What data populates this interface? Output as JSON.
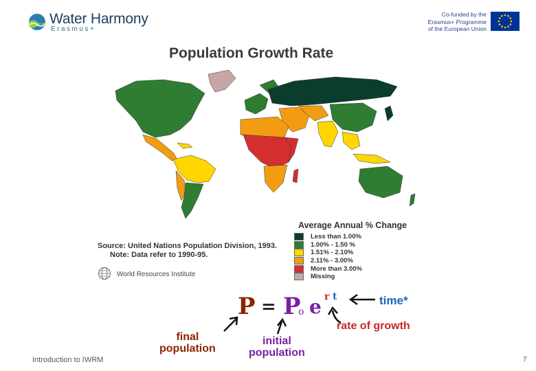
{
  "header": {
    "logo_name": "Water Harmony",
    "logo_sub": "Erasmus+",
    "eu_lines": [
      "Co-funded by the",
      "Erasmus+ Programme",
      "of the European Union"
    ],
    "colors": {
      "brand_blue": "#1b3f5c",
      "eu_blue": "#2a3f8f",
      "eu_flag": "#003399",
      "eu_star": "#ffcc00"
    }
  },
  "map": {
    "title": "Population Growth Rate",
    "source": "Source: United Nations Population Division, 1993.",
    "note": "Note: Data refer to 1990-95.",
    "publisher": "World Resources Institute",
    "legend": {
      "title": "Average Annual % Change",
      "items": [
        {
          "label": "Less than 1.00%",
          "color": "#0b3d2e"
        },
        {
          "label": "1.00% - 1.50 %",
          "color": "#2e7d32"
        },
        {
          "label": "1.51% - 2.10%",
          "color": "#ffd600"
        },
        {
          "label": "2.11% - 3.00%",
          "color": "#f39c12"
        },
        {
          "label": "More than 3.00%",
          "color": "#d32f2f"
        },
        {
          "label": "Missing",
          "color": "#c8a6a6"
        }
      ]
    }
  },
  "formula": {
    "P": "P",
    "eq": "=",
    "P0": "P",
    "sub": "o",
    "e": "e",
    "r": "r",
    "t": "t",
    "labels": {
      "time": "time*",
      "rate": "rate of growth",
      "final": [
        "final",
        "population"
      ],
      "initial": [
        "initial",
        "population"
      ]
    }
  },
  "footer": {
    "text": "Introduction to IWRM",
    "page": "7"
  }
}
